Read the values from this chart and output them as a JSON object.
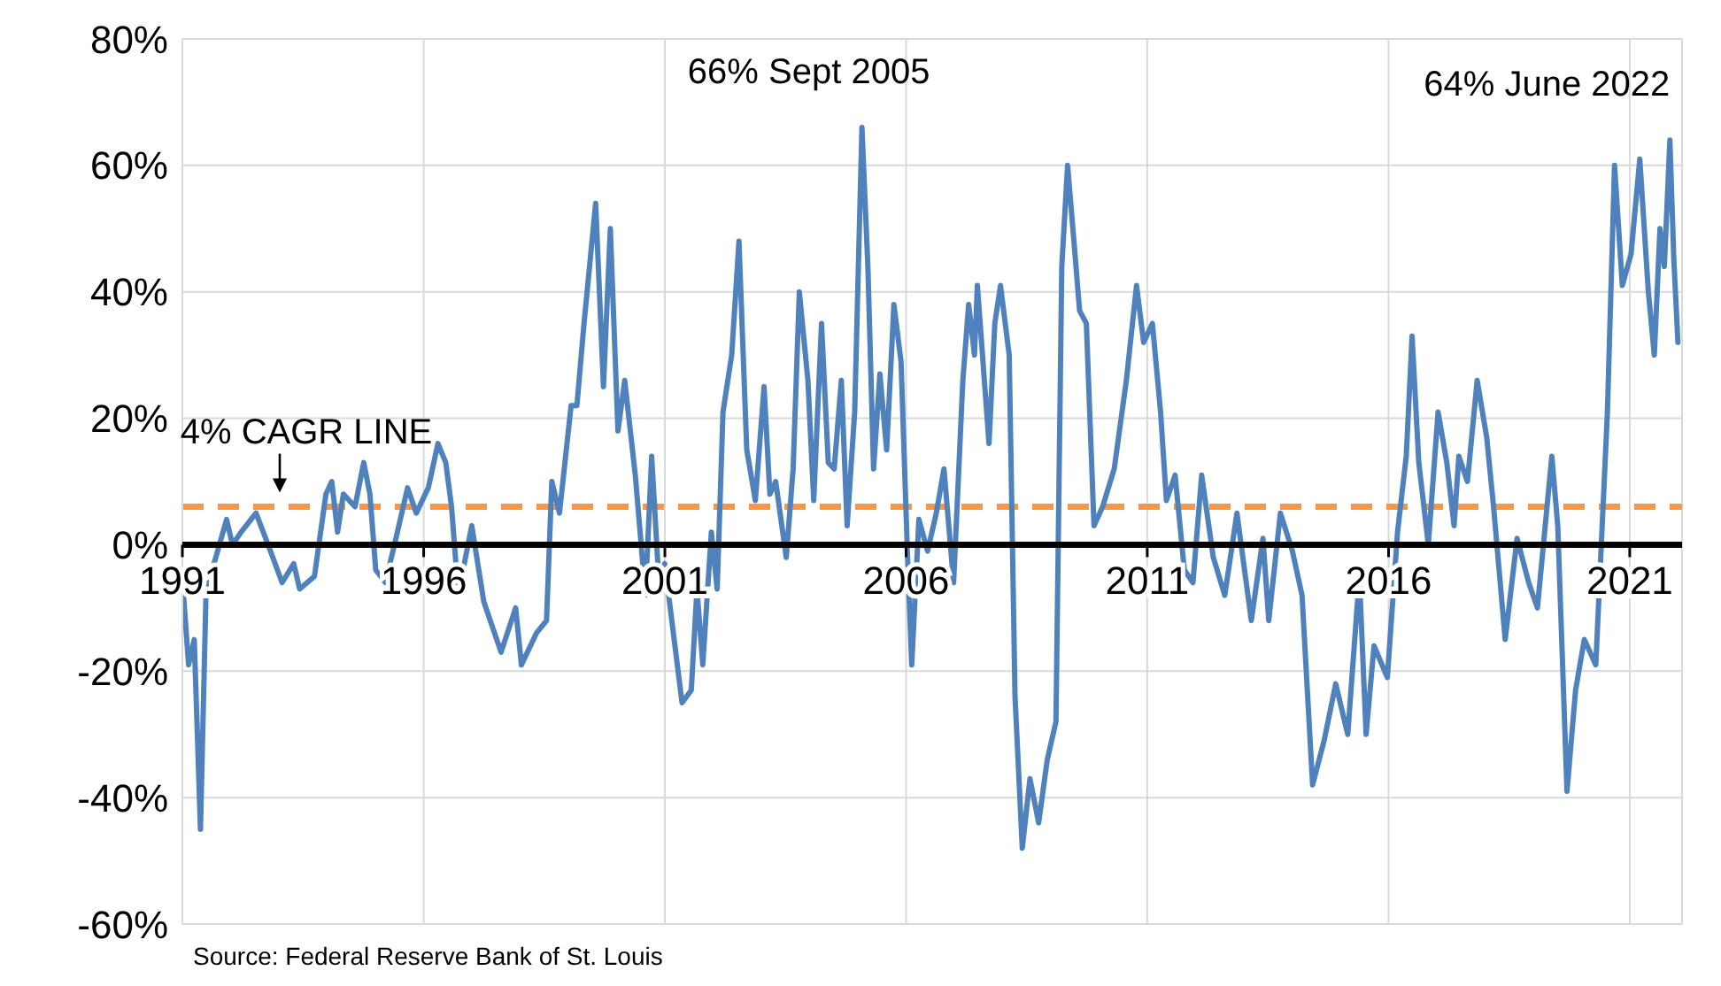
{
  "chart_data": {
    "type": "line",
    "x": [
      "1991-08-03",
      "1991-09-17",
      "1991-10-30",
      "1991-12-16",
      "1992-01-30",
      "1992-03-14",
      "1992-07-01",
      "1992-08-14",
      "1992-10-19",
      "1993-02-09",
      "1993-05-29",
      "1993-08-25",
      "1993-11-21",
      "1994-01-05",
      "1994-04-27",
      "1994-07-23",
      "1994-09-05",
      "1994-10-19",
      "1994-12-02",
      "1995-02-28",
      "1995-05-05",
      "1995-06-21",
      "1995-08-04",
      "1995-10-16",
      "1996-01-04",
      "1996-04-01",
      "1996-06-06",
      "1996-09-05",
      "1996-11-17",
      "1997-01-15",
      "1997-02-28",
      "1997-04-13",
      "1997-05-26",
      "1997-07-31",
      "1997-10-30",
      "1998-03-10",
      "1998-06-28",
      "1998-08-11",
      "1998-12-02",
      "1999-02-17",
      "1999-03-29",
      "1999-05-26",
      "1999-08-22",
      "1999-10-05",
      "1999-11-28",
      "2000-02-24",
      "2000-04-23",
      "2000-06-14",
      "2000-08-11",
      "2000-10-01",
      "2000-12-20",
      "2001-03-07",
      "2001-04-23",
      "2001-06-17",
      "2001-07-31",
      "2001-12-09",
      "2002-02-17",
      "2002-04-01",
      "2002-05-15",
      "2002-07-19",
      "2002-09-01",
      "2002-10-15",
      "2002-12-20",
      "2003-02-13",
      "2003-04-13",
      "2003-06-17",
      "2003-08-22",
      "2003-10-05",
      "2003-11-18",
      "2004-02-06",
      "2004-03-29",
      "2004-05-15",
      "2004-07-19",
      "2004-09-01",
      "2004-10-30",
      "2004-12-20",
      "2005-02-03",
      "2005-03-29",
      "2005-05-12",
      "2005-07-08",
      "2005-09-01",
      "2005-10-16",
      "2005-11-28",
      "2006-01-15",
      "2006-03-07",
      "2006-05-01",
      "2006-06-24",
      "2006-08-11",
      "2006-09-13",
      "2006-11-06",
      "2007-01-11",
      "2007-03-18",
      "2007-05-15",
      "2007-07-27",
      "2007-10-05",
      "2007-11-18",
      "2008-01-01",
      "2008-01-23",
      "2008-04-20",
      "2008-06-03",
      "2008-07-16",
      "2008-09-20",
      "2008-11-03",
      "2008-12-28",
      "2009-02-24",
      "2009-05-01",
      "2009-07-05",
      "2009-09-09",
      "2009-10-23",
      "2009-12-06",
      "2010-01-23",
      "2010-03-07",
      "2010-04-27",
      "2010-06-24",
      "2010-08-28",
      "2010-11-24",
      "2011-02-24",
      "2011-05-12",
      "2011-07-05",
      "2011-09-09",
      "2011-11-10",
      "2011-12-24",
      "2012-02-28",
      "2012-05-08",
      "2012-07-12",
      "2012-09-16",
      "2012-12-13",
      "2013-03-10",
      "2013-06-10",
      "2013-09-27",
      "2013-12-24",
      "2014-02-06",
      "2014-05-05",
      "2014-08-04",
      "2014-10-16",
      "2015-01-04",
      "2015-04-01",
      "2015-06-28",
      "2015-09-27",
      "2015-12-24",
      "2016-02-13",
      "2016-04-13",
      "2016-07-23",
      "2016-10-08",
      "2016-12-13",
      "2017-01-26",
      "2017-03-18",
      "2017-05-29",
      "2017-08-11",
      "2017-10-16",
      "2017-12-10",
      "2018-01-15",
      "2018-03-21",
      "2018-06-03",
      "2018-08-14",
      "2018-10-05",
      "2019-01-01",
      "2019-04-01",
      "2019-06-28",
      "2019-09-02",
      "2019-12-20",
      "2020-02-03",
      "2020-04-13",
      "2020-06-17",
      "2020-08-22",
      "2020-11-17",
      "2021-02-13",
      "2021-04-08",
      "2021-06-06",
      "2021-08-11",
      "2021-10-16",
      "2021-12-20",
      "2022-02-03",
      "2022-03-18",
      "2022-04-20",
      "2022-06-01",
      "2022-07-01",
      "2022-08-01"
    ],
    "series": [
      {
        "color": "#4f81bd",
        "values": [
          -6,
          -19,
          -15,
          -45,
          -5,
          -4,
          4,
          0,
          2,
          5,
          -1,
          -6,
          -3,
          -7,
          -5,
          8,
          10,
          2,
          8,
          6,
          13,
          8,
          -4,
          -6,
          1,
          9,
          5,
          9,
          16,
          13,
          6,
          -6,
          -4,
          3,
          -9,
          -17,
          -10,
          -19,
          -14,
          -12,
          10,
          5,
          22,
          22,
          35,
          54,
          25,
          50,
          18,
          26,
          11,
          -8,
          14,
          -6,
          -3,
          -25,
          -23,
          -7,
          -19,
          2,
          -7,
          21,
          30,
          48,
          15,
          7,
          25,
          8,
          10,
          -2,
          12,
          40,
          26,
          7,
          35,
          13,
          12,
          26,
          3,
          21,
          66,
          44,
          12,
          27,
          15,
          38,
          29,
          -1,
          -19,
          4,
          -1,
          5,
          12,
          -6,
          26,
          38,
          30,
          41,
          16,
          35,
          41,
          30,
          -24,
          -48,
          -37,
          -44,
          -34,
          -28,
          44,
          60,
          48,
          37,
          35,
          3,
          6,
          12,
          26,
          41,
          32,
          35,
          21,
          7,
          11,
          -4,
          -6,
          11,
          -2,
          -8,
          5,
          -12,
          1,
          -12,
          5,
          -1,
          -8,
          -38,
          -31,
          -22,
          -30,
          -5,
          -30,
          -16,
          -21,
          2,
          14,
          33,
          13,
          0,
          21,
          13,
          3,
          14,
          10,
          26,
          17,
          6,
          -15,
          1,
          -6,
          -10,
          14,
          3,
          -39,
          -23,
          -15,
          -19,
          21,
          60,
          41,
          46,
          61,
          40,
          30,
          50,
          44,
          64,
          45,
          32
        ]
      }
    ],
    "xlim": [
      "1991-08-01",
      "2022-09-01"
    ],
    "xticks": [
      {
        "value": "1991-08-01",
        "label": "1991"
      },
      {
        "value": "1996-08-01",
        "label": "1996"
      },
      {
        "value": "2001-08-01",
        "label": "2001"
      },
      {
        "value": "2006-08-01",
        "label": "2006"
      },
      {
        "value": "2011-08-01",
        "label": "2011"
      },
      {
        "value": "2016-08-01",
        "label": "2016"
      },
      {
        "value": "2021-08-01",
        "label": "2021"
      }
    ],
    "ylim": [
      -60,
      80
    ],
    "yticks": [
      {
        "value": -60,
        "label": "-60%"
      },
      {
        "value": -40,
        "label": "-40%"
      },
      {
        "value": -20,
        "label": "-20%"
      },
      {
        "value": 0,
        "label": "0%"
      },
      {
        "value": 20,
        "label": "20%"
      },
      {
        "value": 40,
        "label": "40%"
      },
      {
        "value": 60,
        "label": "60%"
      },
      {
        "value": 80,
        "label": "80%"
      }
    ],
    "grid": true,
    "marker": "none",
    "line_style": "solid",
    "ref_lines": [
      {
        "axis": "y",
        "value": 6,
        "label": "4% CAGR LINE",
        "color": "#f79646",
        "line_style": "dashed"
      }
    ],
    "annotations": [
      {
        "text": "66% Sept 2005",
        "x": "2005-09-01",
        "y": 66
      },
      {
        "text": "64% June 2022",
        "x": "2022-06-01",
        "y": 64
      },
      "Source: Federal Reserve Bank of St. Louis"
    ]
  }
}
